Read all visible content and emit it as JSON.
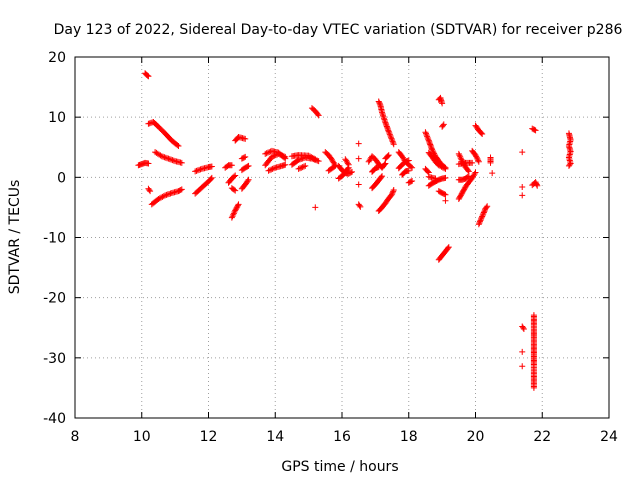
{
  "chart_data": {
    "type": "scatter",
    "title": "Day 123 of 2022, Sidereal Day-to-day VTEC variation (SDTVAR) for receiver p286",
    "xlabel": "GPS time / hours",
    "ylabel": "SDTVAR / TECUs",
    "xlim": [
      8,
      24
    ],
    "ylim": [
      -40,
      20
    ],
    "xticks": [
      8,
      10,
      12,
      14,
      16,
      18,
      20,
      22,
      24
    ],
    "yticks": [
      -40,
      -30,
      -20,
      -10,
      0,
      10,
      20
    ],
    "grid": true,
    "marker": "+",
    "color": "#ff0000",
    "series": [
      {
        "name": "SDTVAR",
        "segments": [
          [
            [
              9.9,
              2.0
            ],
            [
              10.0,
              2.2
            ],
            [
              10.1,
              2.4
            ],
            [
              10.2,
              2.3
            ]
          ],
          [
            [
              10.1,
              17.3
            ],
            [
              10.15,
              17.0
            ],
            [
              10.2,
              16.8
            ]
          ],
          [
            [
              10.2,
              -1.9
            ],
            [
              10.25,
              -2.3
            ]
          ],
          [
            [
              10.2,
              8.9
            ],
            [
              10.35,
              9.2
            ],
            [
              10.5,
              8.4
            ],
            [
              10.7,
              7.3
            ],
            [
              10.9,
              6.1
            ],
            [
              11.1,
              5.2
            ]
          ],
          [
            [
              10.4,
              4.2
            ],
            [
              10.6,
              3.5
            ],
            [
              10.8,
              3.1
            ],
            [
              11.0,
              2.7
            ],
            [
              11.2,
              2.4
            ]
          ],
          [
            [
              10.3,
              -4.5
            ],
            [
              10.5,
              -3.6
            ],
            [
              10.7,
              -3.0
            ],
            [
              10.9,
              -2.6
            ],
            [
              11.1,
              -2.3
            ],
            [
              11.2,
              -2.0
            ]
          ],
          [
            [
              11.6,
              -2.7
            ],
            [
              11.8,
              -1.7
            ],
            [
              12.0,
              -0.7
            ],
            [
              12.1,
              -0.1
            ]
          ],
          [
            [
              11.6,
              1.0
            ],
            [
              11.8,
              1.4
            ],
            [
              12.0,
              1.7
            ],
            [
              12.1,
              1.8
            ]
          ],
          [
            [
              12.5,
              1.6
            ],
            [
              12.6,
              2.0
            ],
            [
              12.7,
              2.0
            ]
          ],
          [
            [
              12.7,
              -6.7
            ],
            [
              12.8,
              -5.5
            ],
            [
              12.9,
              -4.5
            ]
          ],
          [
            [
              12.8,
              6.1
            ],
            [
              12.9,
              6.7
            ],
            [
              13.1,
              6.4
            ]
          ],
          [
            [
              12.6,
              -0.9
            ],
            [
              12.7,
              -0.2
            ],
            [
              12.8,
              0.3
            ]
          ],
          [
            [
              12.7,
              -1.8
            ],
            [
              12.8,
              -2.2
            ]
          ],
          [
            [
              13.0,
              3.1
            ],
            [
              13.1,
              3.4
            ]
          ],
          [
            [
              13.0,
              -1.9
            ],
            [
              13.1,
              -1.2
            ],
            [
              13.2,
              -0.4
            ]
          ],
          [
            [
              13.0,
              1.2
            ],
            [
              13.1,
              1.6
            ],
            [
              13.2,
              1.9
            ]
          ],
          [
            [
              13.7,
              2.0
            ],
            [
              13.9,
              3.4
            ],
            [
              14.1,
              3.9
            ],
            [
              14.3,
              3.4
            ]
          ],
          [
            [
              13.7,
              3.9
            ],
            [
              13.9,
              4.4
            ],
            [
              14.1,
              4.1
            ],
            [
              14.3,
              3.1
            ]
          ],
          [
            [
              13.8,
              1.1
            ],
            [
              14.0,
              1.6
            ],
            [
              14.2,
              1.9
            ],
            [
              14.3,
              2.1
            ]
          ],
          [
            [
              14.5,
              2.1
            ],
            [
              14.7,
              2.9
            ],
            [
              14.9,
              3.3
            ],
            [
              15.1,
              3.1
            ],
            [
              15.3,
              2.7
            ]
          ],
          [
            [
              14.5,
              3.5
            ],
            [
              14.7,
              3.7
            ],
            [
              15.0,
              3.6
            ],
            [
              15.2,
              3.0
            ]
          ],
          [
            [
              14.7,
              1.4
            ],
            [
              14.9,
              1.9
            ]
          ],
          [
            [
              15.1,
              11.5
            ],
            [
              15.2,
              11.0
            ],
            [
              15.3,
              10.3
            ]
          ],
          [
            [
              15.2,
              -5.0
            ]
          ],
          [
            [
              15.5,
              4.2
            ],
            [
              15.6,
              3.7
            ],
            [
              15.7,
              2.9
            ],
            [
              15.8,
              2.0
            ]
          ],
          [
            [
              15.6,
              1.1
            ],
            [
              15.8,
              1.9
            ]
          ],
          [
            [
              15.9,
              1.9
            ],
            [
              16.0,
              1.2
            ],
            [
              16.1,
              0.7
            ],
            [
              16.2,
              0.6
            ],
            [
              16.3,
              0.9
            ]
          ],
          [
            [
              15.9,
              -0.2
            ],
            [
              16.0,
              0.2
            ],
            [
              16.1,
              0.9
            ],
            [
              16.2,
              1.6
            ]
          ],
          [
            [
              16.1,
              3.0
            ],
            [
              16.2,
              2.1
            ]
          ],
          [
            [
              16.5,
              5.6
            ]
          ],
          [
            [
              16.5,
              3.1
            ]
          ],
          [
            [
              16.5,
              -1.2
            ]
          ],
          [
            [
              16.5,
              -4.5
            ],
            [
              16.55,
              -4.9
            ]
          ],
          [
            [
              16.8,
              2.6
            ],
            [
              16.9,
              3.5
            ],
            [
              17.0,
              3.0
            ],
            [
              17.1,
              2.2
            ],
            [
              17.2,
              1.6
            ],
            [
              17.3,
              2.3
            ]
          ],
          [
            [
              16.9,
              -1.8
            ],
            [
              17.0,
              -1.2
            ],
            [
              17.1,
              -0.5
            ],
            [
              17.2,
              0.2
            ]
          ],
          [
            [
              16.9,
              0.9
            ],
            [
              17.0,
              1.5
            ],
            [
              17.1,
              1.7
            ]
          ],
          [
            [
              17.1,
              12.6
            ],
            [
              17.15,
              12.0
            ],
            [
              17.2,
              10.8
            ],
            [
              17.3,
              9.1
            ],
            [
              17.4,
              7.6
            ],
            [
              17.5,
              6.2
            ],
            [
              17.55,
              5.5
            ]
          ],
          [
            [
              17.1,
              -5.6
            ],
            [
              17.2,
              -5.0
            ],
            [
              17.3,
              -4.3
            ],
            [
              17.4,
              -3.5
            ],
            [
              17.5,
              -2.8
            ],
            [
              17.55,
              -2.1
            ]
          ],
          [
            [
              17.3,
              3.1
            ],
            [
              17.4,
              3.7
            ]
          ],
          [
            [
              17.7,
              4.2
            ],
            [
              17.8,
              3.5
            ],
            [
              17.9,
              2.6
            ],
            [
              18.0,
              2.1
            ],
            [
              18.1,
              1.6
            ]
          ],
          [
            [
              17.7,
              1.5
            ],
            [
              17.8,
              2.1
            ],
            [
              17.9,
              2.6
            ],
            [
              18.0,
              2.8
            ]
          ],
          [
            [
              17.8,
              0.4
            ],
            [
              17.9,
              1.0
            ],
            [
              18.0,
              1.1
            ]
          ],
          [
            [
              18.0,
              -0.9
            ],
            [
              18.1,
              -0.6
            ]
          ],
          [
            [
              18.5,
              1.4
            ],
            [
              18.6,
              0.8
            ]
          ],
          [
            [
              18.5,
              7.5
            ],
            [
              18.6,
              6.1
            ],
            [
              18.7,
              4.6
            ],
            [
              18.8,
              3.5
            ],
            [
              18.9,
              2.7
            ],
            [
              19.0,
              2.0
            ],
            [
              19.1,
              1.6
            ]
          ],
          [
            [
              18.6,
              4.1
            ],
            [
              18.7,
              3.4
            ],
            [
              18.8,
              2.6
            ],
            [
              18.9,
              2.0
            ],
            [
              19.1,
              1.4
            ]
          ],
          [
            [
              18.6,
              -1.4
            ],
            [
              18.7,
              -1.0
            ],
            [
              18.8,
              -0.7
            ],
            [
              18.9,
              -0.4
            ],
            [
              19.0,
              -0.2
            ],
            [
              19.1,
              -0.1
            ]
          ],
          [
            [
              18.6,
              0.1
            ],
            [
              18.8,
              -0.2
            ]
          ],
          [
            [
              18.9,
              12.9
            ],
            [
              18.95,
              13.2
            ],
            [
              19.0,
              12.3
            ]
          ],
          [
            [
              19.0,
              8.4
            ],
            [
              19.05,
              8.8
            ]
          ],
          [
            [
              18.9,
              -13.7
            ],
            [
              19.0,
              -13.0
            ],
            [
              19.1,
              -12.3
            ],
            [
              19.2,
              -11.6
            ]
          ],
          [
            [
              18.9,
              -2.3
            ],
            [
              19.0,
              -2.6
            ],
            [
              19.1,
              -2.9
            ]
          ],
          [
            [
              19.1,
              -3.9
            ]
          ],
          [
            [
              19.5,
              3.9
            ],
            [
              19.6,
              2.7
            ],
            [
              19.7,
              1.7
            ],
            [
              19.8,
              1.0
            ]
          ],
          [
            [
              19.5,
              2.2
            ],
            [
              19.7,
              2.4
            ],
            [
              19.9,
              2.4
            ]
          ],
          [
            [
              19.5,
              -0.4
            ],
            [
              19.6,
              -0.4
            ],
            [
              19.7,
              -0.2
            ],
            [
              19.8,
              0.2
            ]
          ],
          [
            [
              19.5,
              -3.6
            ],
            [
              19.6,
              -2.6
            ],
            [
              19.7,
              -1.6
            ],
            [
              19.8,
              -0.8
            ],
            [
              19.9,
              -0.1
            ],
            [
              20.0,
              0.8
            ]
          ],
          [
            [
              19.9,
              4.4
            ],
            [
              20.0,
              3.7
            ],
            [
              20.1,
              2.6
            ]
          ],
          [
            [
              20.0,
              8.6
            ],
            [
              20.1,
              7.8
            ],
            [
              20.2,
              7.2
            ]
          ],
          [
            [
              20.1,
              -7.8
            ],
            [
              20.2,
              -6.5
            ],
            [
              20.3,
              -5.2
            ],
            [
              20.35,
              -4.8
            ]
          ],
          [
            [
              20.45,
              3.3
            ],
            [
              20.45,
              2.4
            ]
          ],
          [
            [
              20.5,
              0.7
            ]
          ],
          [
            [
              21.4,
              4.2
            ]
          ],
          [
            [
              21.4,
              -1.6
            ]
          ],
          [
            [
              21.4,
              -3.0
            ]
          ],
          [
            [
              21.4,
              -24.8
            ],
            [
              21.45,
              -25.2
            ]
          ],
          [
            [
              21.4,
              -29.0
            ]
          ],
          [
            [
              21.4,
              -31.4
            ]
          ],
          [
            [
              21.7,
              8.1
            ],
            [
              21.8,
              7.8
            ]
          ],
          [
            [
              21.7,
              -1.3
            ],
            [
              21.8,
              -0.8
            ],
            [
              21.85,
              -1.4
            ]
          ],
          [
            [
              21.75,
              -35.0
            ],
            [
              21.75,
              -33.8
            ],
            [
              21.75,
              -32.4
            ],
            [
              21.75,
              -31.1
            ],
            [
              21.75,
              -30.0
            ],
            [
              21.75,
              -28.9
            ],
            [
              21.75,
              -27.8
            ],
            [
              21.75,
              -26.6
            ],
            [
              21.75,
              -25.5
            ],
            [
              21.75,
              -24.5
            ],
            [
              21.75,
              -23.6
            ],
            [
              21.75,
              -22.9
            ]
          ],
          [
            [
              22.8,
              7.3
            ],
            [
              22.85,
              6.2
            ],
            [
              22.8,
              5.2
            ],
            [
              22.85,
              4.3
            ],
            [
              22.8,
              3.3
            ],
            [
              22.85,
              2.3
            ],
            [
              22.8,
              1.9
            ]
          ]
        ]
      }
    ]
  }
}
